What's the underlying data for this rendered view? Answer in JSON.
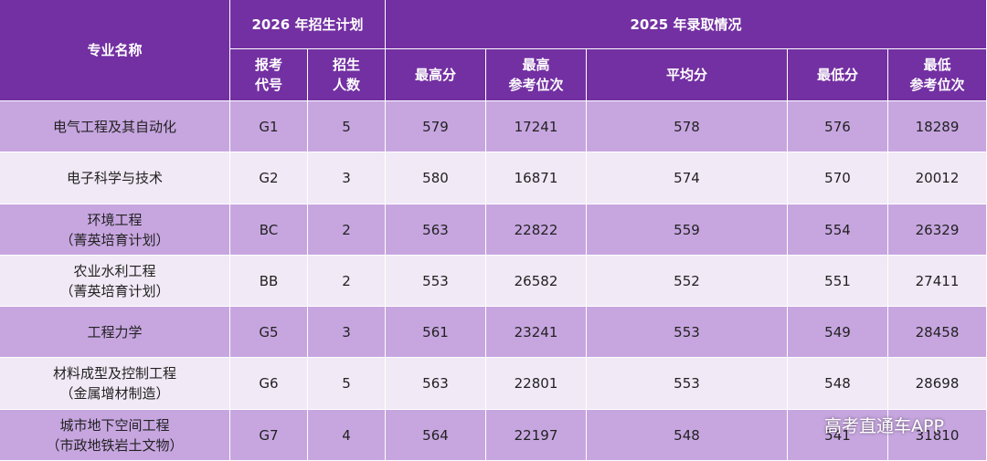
{
  "header": {
    "name": "专业名称",
    "plan_group": "2026 年招生计划",
    "admit_group": "2025 年录取情况",
    "columns": [
      "报考\n代号",
      "招生\n人数",
      "最高分",
      "最高\n参考位次",
      "平均分",
      "最低分",
      "最低\n参考位次"
    ]
  },
  "table": {
    "rows": [
      [
        "电气工程及其自动化",
        "G1",
        5,
        579,
        17241,
        578,
        576,
        18289
      ],
      [
        "电子科学与技术",
        "G2",
        3,
        580,
        16871,
        574,
        570,
        20012
      ],
      [
        "环境工程\n（菁英培育计划）",
        "BC",
        2,
        563,
        22822,
        559,
        554,
        26329
      ],
      [
        "农业水利工程\n（菁英培育计划）",
        "BB",
        2,
        553,
        26582,
        552,
        551,
        27411
      ],
      [
        "工程力学",
        "G5",
        3,
        561,
        23241,
        553,
        549,
        28458
      ],
      [
        "材料成型及控制工程\n（金属增材制造）",
        "G6",
        5,
        563,
        22801,
        553,
        548,
        28698
      ],
      [
        "城市地下空间工程\n（市政地铁岩土文物）",
        "G7",
        4,
        564,
        22197,
        548,
        541,
        31810
      ]
    ]
  },
  "watermark": "高考直通车APP"
}
